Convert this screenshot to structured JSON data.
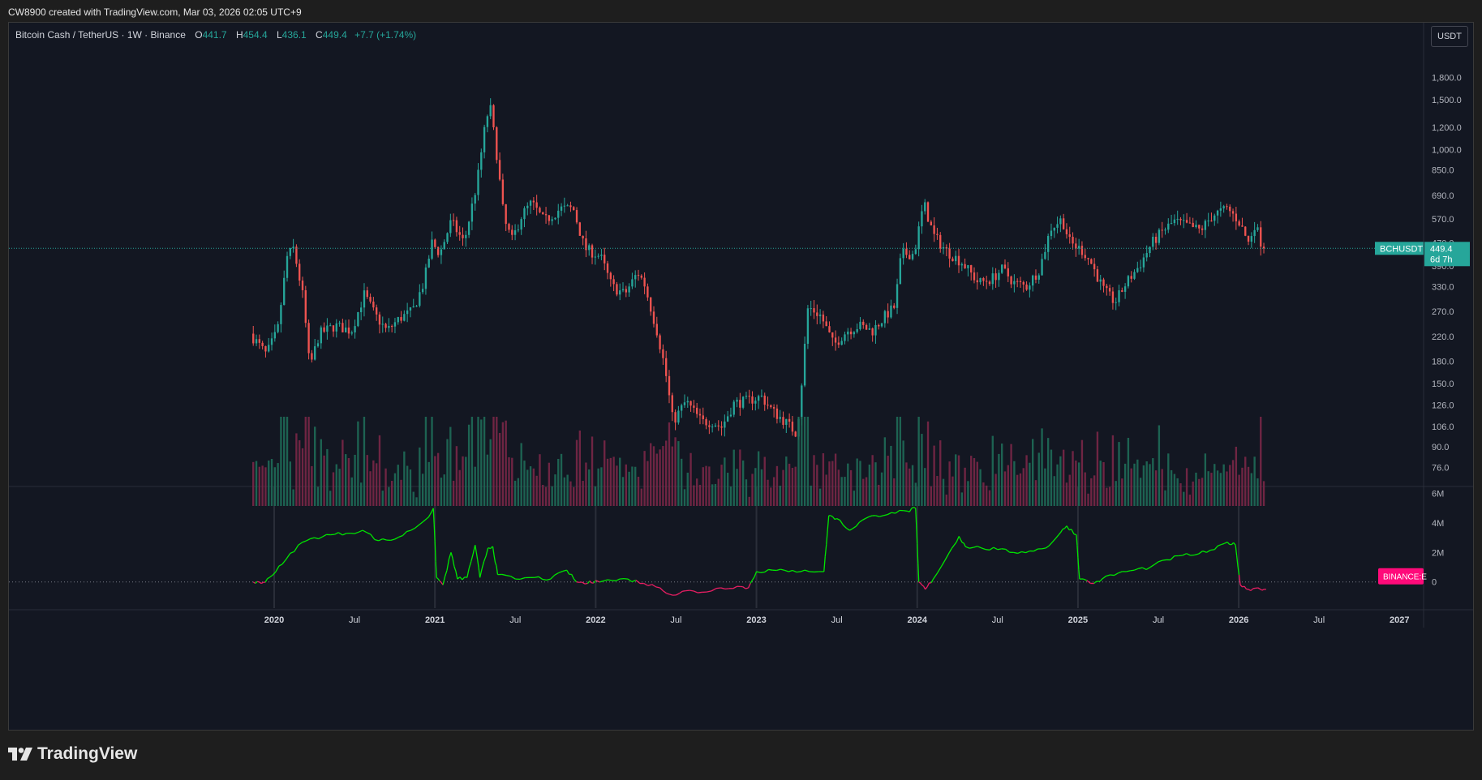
{
  "header": {
    "credit": "CW8900 created with TradingView.com, Mar 03, 2026 02:05 UTC+9"
  },
  "legend": {
    "symbol": "Bitcoin Cash / TetherUS · 1W · Binance",
    "o_label": "O",
    "o_value": "441.7",
    "h_label": "H",
    "h_value": "454.4",
    "l_label": "L",
    "l_value": "436.1",
    "c_label": "C",
    "c_value": "449.4",
    "change": "+7.7 (+1.74%)"
  },
  "currency_button": "USDT",
  "price_tag": {
    "symbol": "BCHUSDT",
    "price": "449.4",
    "countdown": "6d 7h"
  },
  "indicator_tag": "BINANCE:E",
  "footer": {
    "brand": "TradingView"
  },
  "colors": {
    "up": "#26a69a",
    "down": "#ef5350",
    "indicator_up": "#00e600",
    "indicator_down": "#e91e63",
    "background": "#131722",
    "tag_pink": "#ff0a7a"
  },
  "chart_data": [
    {
      "type": "candlestick",
      "title": "Bitcoin Cash / TetherUS · 1W · Binance",
      "scale": "log",
      "ylim": [
        66,
        2300
      ],
      "price_ticks": [
        "1,800.0",
        "1,500.0",
        "1,200.0",
        "1,000.0",
        "850.0",
        "690.0",
        "570.0",
        "470.0",
        "390.0",
        "330.0",
        "270.0",
        "220.0",
        "180.0",
        "150.0",
        "126.0",
        "106.0",
        "90.0",
        "76.0"
      ],
      "price_tick_values": [
        1800,
        1500,
        1200,
        1000,
        850,
        690,
        570,
        470,
        390,
        330,
        270,
        220,
        180,
        150,
        126,
        106,
        90,
        76
      ],
      "x_ticks": [
        "2020",
        "Jul",
        "2021",
        "Jul",
        "2022",
        "Jul",
        "2023",
        "Jul",
        "2024",
        "Jul",
        "2025",
        "Jul",
        "2026",
        "Jul",
        "2027"
      ],
      "x_tick_years": [
        2020.0,
        2020.5,
        2021.0,
        2021.5,
        2022.0,
        2022.5,
        2023.0,
        2023.5,
        2024.0,
        2024.5,
        2025.0,
        2025.5,
        2026.0,
        2026.5,
        2027.0
      ],
      "xlim": [
        2018.35,
        2027.15
      ],
      "last_close": 449.4,
      "price_path": [
        [
          2019.87,
          225
        ],
        [
          2019.97,
          190
        ],
        [
          2020.04,
          230
        ],
        [
          2020.1,
          420
        ],
        [
          2020.14,
          450
        ],
        [
          2020.2,
          300
        ],
        [
          2020.24,
          170
        ],
        [
          2020.3,
          225
        ],
        [
          2020.4,
          240
        ],
        [
          2020.5,
          230
        ],
        [
          2020.58,
          310
        ],
        [
          2020.65,
          260
        ],
        [
          2020.72,
          230
        ],
        [
          2020.8,
          255
        ],
        [
          2020.88,
          270
        ],
        [
          2020.95,
          340
        ],
        [
          2021.0,
          470
        ],
        [
          2021.05,
          430
        ],
        [
          2021.12,
          560
        ],
        [
          2021.2,
          470
        ],
        [
          2021.28,
          760
        ],
        [
          2021.33,
          1200
        ],
        [
          2021.36,
          1450
        ],
        [
          2021.4,
          1000
        ],
        [
          2021.45,
          560
        ],
        [
          2021.5,
          480
        ],
        [
          2021.56,
          590
        ],
        [
          2021.62,
          650
        ],
        [
          2021.7,
          560
        ],
        [
          2021.8,
          620
        ],
        [
          2021.88,
          620
        ],
        [
          2021.95,
          450
        ],
        [
          2022.05,
          420
        ],
        [
          2022.12,
          330
        ],
        [
          2022.2,
          310
        ],
        [
          2022.28,
          370
        ],
        [
          2022.32,
          340
        ],
        [
          2022.4,
          230
        ],
        [
          2022.45,
          170
        ],
        [
          2022.5,
          110
        ],
        [
          2022.58,
          130
        ],
        [
          2022.68,
          110
        ],
        [
          2022.75,
          110
        ],
        [
          2022.8,
          105
        ],
        [
          2022.88,
          128
        ],
        [
          2022.95,
          130
        ],
        [
          2023.05,
          135
        ],
        [
          2023.12,
          120
        ],
        [
          2023.2,
          110
        ],
        [
          2023.27,
          100
        ],
        [
          2023.3,
          150
        ],
        [
          2023.34,
          280
        ],
        [
          2023.42,
          260
        ],
        [
          2023.5,
          205
        ],
        [
          2023.58,
          230
        ],
        [
          2023.66,
          240
        ],
        [
          2023.74,
          230
        ],
        [
          2023.82,
          260
        ],
        [
          2023.88,
          280
        ],
        [
          2023.92,
          430
        ],
        [
          2024.0,
          430
        ],
        [
          2024.06,
          650
        ],
        [
          2024.12,
          500
        ],
        [
          2024.2,
          440
        ],
        [
          2024.3,
          400
        ],
        [
          2024.4,
          340
        ],
        [
          2024.48,
          350
        ],
        [
          2024.55,
          380
        ],
        [
          2024.62,
          340
        ],
        [
          2024.7,
          330
        ],
        [
          2024.78,
          380
        ],
        [
          2024.85,
          530
        ],
        [
          2024.92,
          570
        ],
        [
          2024.97,
          470
        ],
        [
          2025.05,
          440
        ],
        [
          2025.1,
          400
        ],
        [
          2025.18,
          320
        ],
        [
          2025.25,
          290
        ],
        [
          2025.32,
          340
        ],
        [
          2025.4,
          390
        ],
        [
          2025.48,
          470
        ],
        [
          2025.55,
          520
        ],
        [
          2025.62,
          560
        ],
        [
          2025.7,
          540
        ],
        [
          2025.78,
          520
        ],
        [
          2025.86,
          590
        ],
        [
          2025.95,
          620
        ],
        [
          2026.02,
          560
        ],
        [
          2026.08,
          470
        ],
        [
          2026.12,
          550
        ],
        [
          2026.17,
          449
        ]
      ]
    },
    {
      "type": "volume",
      "ylim": [
        0,
        1
      ],
      "values_note": ""
    },
    {
      "type": "line",
      "y_ticks": [
        "6M",
        "4M",
        "2M",
        "0"
      ],
      "y_tick_values": [
        6,
        4,
        2,
        0
      ],
      "ylim": [
        -1.5,
        6.2
      ],
      "unit": "M",
      "series": [
        {
          "values": [
            [
              2019.87,
              0.0
            ],
            [
              2019.92,
              -0.1
            ],
            [
              2019.97,
              0.3
            ],
            [
              2020.05,
              1.2
            ],
            [
              2020.15,
              2.5
            ],
            [
              2020.25,
              3.0
            ],
            [
              2020.35,
              3.2
            ],
            [
              2020.45,
              3.3
            ],
            [
              2020.55,
              3.5
            ],
            [
              2020.65,
              2.8
            ],
            [
              2020.75,
              2.9
            ],
            [
              2020.85,
              3.5
            ],
            [
              2020.95,
              4.3
            ],
            [
              2020.99,
              5.0
            ],
            [
              2021.01,
              0.3
            ],
            [
              2021.05,
              -0.2
            ],
            [
              2021.1,
              2.0
            ],
            [
              2021.14,
              0.2
            ],
            [
              2021.2,
              0.3
            ],
            [
              2021.25,
              2.5
            ],
            [
              2021.28,
              0.3
            ],
            [
              2021.33,
              2.3
            ],
            [
              2021.36,
              2.4
            ],
            [
              2021.39,
              0.5
            ],
            [
              2021.5,
              0.2
            ],
            [
              2021.62,
              0.3
            ],
            [
              2021.72,
              0.2
            ],
            [
              2021.82,
              0.8
            ],
            [
              2021.88,
              0.0
            ],
            [
              2021.95,
              -0.1
            ],
            [
              2022.0,
              0.1
            ],
            [
              2022.1,
              0.1
            ],
            [
              2022.2,
              0.2
            ],
            [
              2022.3,
              -0.1
            ],
            [
              2022.4,
              -0.4
            ],
            [
              2022.48,
              -0.9
            ],
            [
              2022.56,
              -0.6
            ],
            [
              2022.66,
              -0.7
            ],
            [
              2022.78,
              -0.4
            ],
            [
              2022.88,
              -0.3
            ],
            [
              2022.95,
              -0.4
            ],
            [
              2023.0,
              0.7
            ],
            [
              2023.1,
              0.8
            ],
            [
              2023.2,
              0.7
            ],
            [
              2023.3,
              0.8
            ],
            [
              2023.42,
              0.7
            ],
            [
              2023.45,
              4.5
            ],
            [
              2023.5,
              4.3
            ],
            [
              2023.58,
              3.5
            ],
            [
              2023.66,
              4.2
            ],
            [
              2023.74,
              4.5
            ],
            [
              2023.84,
              4.7
            ],
            [
              2023.94,
              4.8
            ],
            [
              2023.99,
              5.0
            ],
            [
              2024.01,
              0.0
            ],
            [
              2024.05,
              -0.5
            ],
            [
              2024.1,
              0.2
            ],
            [
              2024.2,
              2.0
            ],
            [
              2024.26,
              3.1
            ],
            [
              2024.3,
              2.4
            ],
            [
              2024.4,
              2.3
            ],
            [
              2024.5,
              2.2
            ],
            [
              2024.6,
              2.0
            ],
            [
              2024.7,
              2.1
            ],
            [
              2024.8,
              2.3
            ],
            [
              2024.88,
              3.2
            ],
            [
              2024.93,
              3.8
            ],
            [
              2024.99,
              3.2
            ],
            [
              2025.01,
              0.2
            ],
            [
              2025.1,
              -0.1
            ],
            [
              2025.15,
              0.2
            ],
            [
              2025.25,
              0.6
            ],
            [
              2025.35,
              0.8
            ],
            [
              2025.45,
              1.0
            ],
            [
              2025.55,
              1.5
            ],
            [
              2025.65,
              1.8
            ],
            [
              2025.75,
              1.9
            ],
            [
              2025.85,
              2.2
            ],
            [
              2025.93,
              2.7
            ],
            [
              2025.98,
              2.5
            ],
            [
              2026.01,
              -0.2
            ],
            [
              2026.06,
              -0.5
            ],
            [
              2026.12,
              -0.4
            ],
            [
              2026.17,
              -0.5
            ]
          ]
        }
      ]
    }
  ]
}
